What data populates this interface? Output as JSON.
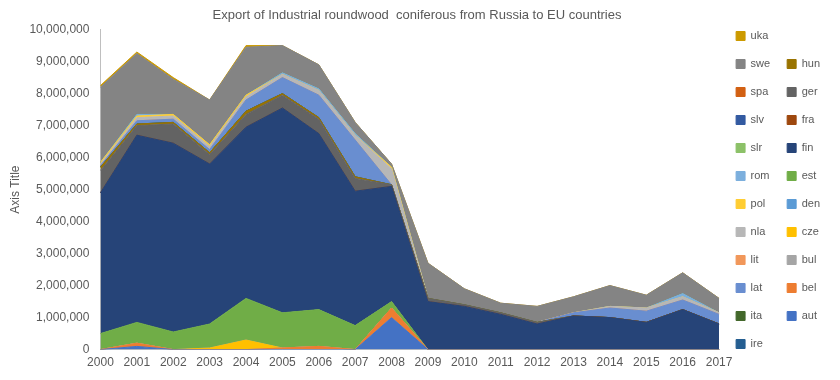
{
  "chart_data": {
    "type": "area",
    "title": "Export of Industrial roundwood  coniferous from Russia to EU countries",
    "y_label": "Axis Title",
    "categories": [
      "2000",
      "2001",
      "2002",
      "2003",
      "2004",
      "2005",
      "2006",
      "2007",
      "2008",
      "2009",
      "2010",
      "2011",
      "2012",
      "2013",
      "2014",
      "2015",
      "2016",
      "2017"
    ],
    "stacked": true,
    "grid": false,
    "legend": "right",
    "ylim": [
      0,
      10000000
    ],
    "yticks": [
      0,
      {
        "value": 1000000,
        "label": "1,000,000"
      },
      {
        "value": 2000000,
        "label": "2,000,000"
      },
      {
        "value": 3000000,
        "label": "3,000,000"
      },
      {
        "value": 4000000,
        "label": "4,000,000"
      },
      {
        "value": 5000000,
        "label": "5,000,000"
      },
      {
        "value": 6000000,
        "label": "6,000,000"
      },
      {
        "value": 7000000,
        "label": "7,000,000"
      },
      {
        "value": 8000000,
        "label": "8,000,000"
      },
      {
        "value": 9000000,
        "label": "9,000,000"
      },
      {
        "value": 10000000,
        "label": "10,000,000"
      }
    ],
    "series": [
      {
        "name": "aut",
        "color": "#4472C4",
        "values": [
          0,
          100000,
          0,
          0,
          0,
          0,
          0,
          0,
          1000000,
          0,
          0,
          0,
          0,
          0,
          0,
          0,
          0,
          0
        ]
      },
      {
        "name": "bel",
        "color": "#ED7D31",
        "values": [
          0,
          100000,
          0,
          0,
          0,
          50000,
          100000,
          0,
          300000,
          0,
          0,
          0,
          0,
          0,
          0,
          0,
          0,
          0
        ]
      },
      {
        "name": "bul",
        "color": "#A5A5A5",
        "values": [
          0,
          0,
          0,
          0,
          0,
          0,
          0,
          0,
          0,
          0,
          0,
          0,
          0,
          0,
          0,
          0,
          0,
          0
        ]
      },
      {
        "name": "cze",
        "color": "#FFC000",
        "values": [
          0,
          0,
          0,
          50000,
          300000,
          0,
          0,
          0,
          0,
          0,
          0,
          0,
          0,
          0,
          0,
          0,
          0,
          0
        ]
      },
      {
        "name": "den",
        "color": "#5B9BD5",
        "values": [
          0,
          0,
          0,
          0,
          0,
          0,
          0,
          0,
          0,
          0,
          0,
          0,
          0,
          0,
          0,
          0,
          0,
          0
        ]
      },
      {
        "name": "est",
        "color": "#70AD47",
        "values": [
          500000,
          650000,
          550000,
          750000,
          1300000,
          1100000,
          1150000,
          750000,
          200000,
          0,
          0,
          0,
          0,
          0,
          0,
          0,
          0,
          0
        ]
      },
      {
        "name": "fin",
        "color": "#264478",
        "values": [
          4400000,
          5850000,
          5900000,
          5000000,
          5350000,
          6400000,
          5500000,
          4200000,
          3600000,
          1500000,
          1350000,
          1100000,
          800000,
          1050000,
          1000000,
          850000,
          1250000,
          800000
        ]
      },
      {
        "name": "fra",
        "color": "#9E480E",
        "values": [
          0,
          0,
          0,
          0,
          0,
          0,
          0,
          0,
          0,
          0,
          0,
          0,
          0,
          0,
          0,
          0,
          0,
          0
        ]
      },
      {
        "name": "ger",
        "color": "#636363",
        "values": [
          700000,
          300000,
          600000,
          300000,
          400000,
          400000,
          450000,
          400000,
          50000,
          100000,
          50000,
          50000,
          50000,
          0,
          0,
          0,
          0,
          0
        ]
      },
      {
        "name": "hun",
        "color": "#997300",
        "values": [
          100000,
          50000,
          50000,
          50000,
          100000,
          50000,
          50000,
          50000,
          0,
          0,
          0,
          0,
          0,
          0,
          0,
          0,
          0,
          0
        ]
      },
      {
        "name": "ire",
        "color": "#255E91",
        "values": [
          0,
          0,
          0,
          0,
          0,
          0,
          0,
          0,
          0,
          0,
          0,
          0,
          0,
          0,
          0,
          0,
          0,
          0
        ]
      },
      {
        "name": "ita",
        "color": "#43682B",
        "values": [
          0,
          0,
          0,
          0,
          0,
          0,
          0,
          0,
          0,
          0,
          0,
          0,
          0,
          0,
          0,
          0,
          0,
          0
        ]
      },
      {
        "name": "lat",
        "color": "#698ED0",
        "values": [
          50000,
          100000,
          100000,
          100000,
          350000,
          500000,
          700000,
          1150000,
          0,
          0,
          0,
          0,
          0,
          100000,
          300000,
          350000,
          300000,
          300000
        ]
      },
      {
        "name": "lit",
        "color": "#F1975A",
        "values": [
          0,
          0,
          0,
          0,
          0,
          0,
          0,
          0,
          0,
          0,
          0,
          0,
          0,
          0,
          0,
          0,
          0,
          0
        ]
      },
      {
        "name": "nla",
        "color": "#B7B7B7",
        "values": [
          50000,
          100000,
          100000,
          100000,
          100000,
          100000,
          150000,
          150000,
          500000,
          0,
          0,
          0,
          0,
          0,
          50000,
          100000,
          100000,
          50000
        ]
      },
      {
        "name": "pol",
        "color": "#FFCD33",
        "values": [
          50000,
          50000,
          50000,
          50000,
          50000,
          0,
          0,
          0,
          50000,
          0,
          0,
          0,
          0,
          0,
          0,
          0,
          0,
          0
        ]
      },
      {
        "name": "rom",
        "color": "#7CAFDD",
        "values": [
          0,
          50000,
          0,
          0,
          0,
          50000,
          50000,
          50000,
          0,
          0,
          0,
          0,
          0,
          0,
          0,
          0,
          100000,
          0
        ]
      },
      {
        "name": "slr",
        "color": "#8CC168",
        "values": [
          0,
          0,
          0,
          0,
          0,
          0,
          0,
          0,
          0,
          0,
          0,
          0,
          0,
          0,
          0,
          0,
          0,
          0
        ]
      },
      {
        "name": "slv",
        "color": "#335AA1",
        "values": [
          0,
          0,
          0,
          0,
          0,
          0,
          0,
          0,
          0,
          0,
          0,
          0,
          0,
          0,
          0,
          0,
          0,
          0
        ]
      },
      {
        "name": "spa",
        "color": "#D26012",
        "values": [
          0,
          0,
          0,
          0,
          0,
          0,
          0,
          0,
          0,
          0,
          0,
          0,
          0,
          0,
          0,
          0,
          0,
          0
        ]
      },
      {
        "name": "swe",
        "color": "#848484",
        "values": [
          2350000,
          1900000,
          1100000,
          1400000,
          1500000,
          850000,
          750000,
          350000,
          100000,
          1100000,
          500000,
          300000,
          500000,
          500000,
          650000,
          400000,
          650000,
          450000
        ]
      },
      {
        "name": "uka",
        "color": "#CC9A00",
        "values": [
          50000,
          50000,
          50000,
          0,
          50000,
          0,
          0,
          0,
          0,
          0,
          0,
          0,
          0,
          0,
          0,
          0,
          0,
          0
        ]
      }
    ]
  }
}
